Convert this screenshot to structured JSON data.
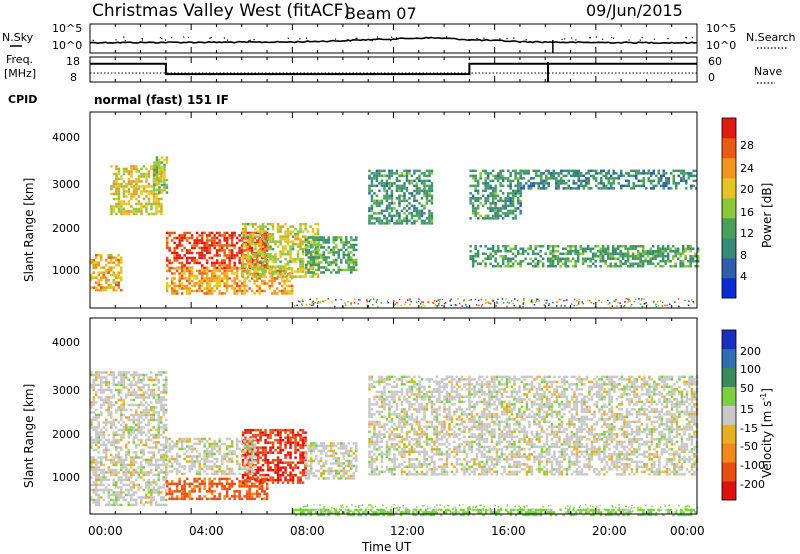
{
  "header": {
    "title": "Christmas Valley West (fitACF)",
    "beam": "Beam 07",
    "date": "09/Jun/2015"
  },
  "noise_panel": {
    "left_label_line1": "N.Sky",
    "right_label": "N.Search",
    "left_ticks": [
      "10^5",
      "10^0"
    ],
    "right_ticks": [
      "10^5",
      "10^0"
    ]
  },
  "freq_panel": {
    "left_label_line1": "Freq.",
    "left_label_line2": "[MHz]",
    "right_label": "Nave",
    "left_ticks": [
      "18",
      "8"
    ],
    "right_ticks": [
      "60",
      "0"
    ],
    "freq_segments_mhz": [
      {
        "t0": 0.0,
        "t1": 3.0,
        "f": 15.5
      },
      {
        "t0": 3.0,
        "t1": 15.0,
        "f": 11.0
      },
      {
        "t0": 15.0,
        "t1": 24.0,
        "f": 15.5
      }
    ]
  },
  "cpid": {
    "label": "CPID",
    "value": "normal (fast) 151 IF"
  },
  "x_axis": {
    "label": "Time UT",
    "ticks": [
      "00:00",
      "04:00",
      "08:00",
      "12:00",
      "16:00",
      "20:00",
      "00:00"
    ],
    "range_hours": [
      0,
      24
    ]
  },
  "y_axis": {
    "label": "Slant Range [km]",
    "ticks": [
      "1000",
      "2000",
      "3000",
      "4000"
    ],
    "range_km": [
      180,
      4600
    ]
  },
  "power_colorbar": {
    "label": "Power [dB]",
    "ticks": [
      "4",
      "8",
      "12",
      "16",
      "20",
      "24",
      "28"
    ],
    "range": [
      0,
      30
    ],
    "colors": [
      "#0a2bd6",
      "#2f5fa8",
      "#3a8a78",
      "#4aa05a",
      "#8cc63a",
      "#e8c421",
      "#f0961c",
      "#ea5a14",
      "#e01b0f"
    ]
  },
  "velocity_colorbar": {
    "label": "Velocity [m s",
    "label_sup": "-1",
    "label_close": "]",
    "ticks": [
      "200",
      "100",
      "50",
      "15",
      "-15",
      "-50",
      "-100",
      "-200"
    ],
    "colors": [
      "#1a2fc0",
      "#2f6eb0",
      "#3a8a5a",
      "#7ccf40",
      "#c8c8c8",
      "#e8b020",
      "#f08a18",
      "#ea4e14",
      "#e01010"
    ]
  },
  "chart_data": [
    {
      "type": "line",
      "title": "N.Sky / N.Search",
      "x": [
        0,
        2,
        4,
        6,
        8,
        10,
        12,
        13.5,
        15,
        17,
        19,
        21,
        24
      ],
      "series": [
        {
          "values": [
            55,
            58,
            62,
            65,
            70,
            120,
            260,
            420,
            180,
            80,
            60,
            55,
            50
          ]
        }
      ]
    },
    {
      "type": "line",
      "title": "Freq. [MHz]",
      "xlabel": "Time UT",
      "ylabel": "Freq. [MHz]",
      "x": [
        0,
        3,
        3,
        15,
        15,
        24
      ],
      "series": [
        {
          "values": [
            15.5,
            15.5,
            11.0,
            11.0,
            15.5,
            15.5
          ]
        }
      ],
      "ylim": [
        8,
        18
      ]
    },
    {
      "type": "heatmap",
      "title": "Power [dB]",
      "xlabel": "Time UT",
      "ylabel": "Slant Range [km]",
      "xlim": [
        0,
        24
      ],
      "ylim": [
        180,
        4600
      ],
      "regions": [
        {
          "t0": 0.8,
          "t1": 2.8,
          "r0": 2300,
          "r1": 3400,
          "value_db": 18
        },
        {
          "t0": 0.0,
          "t1": 1.2,
          "r0": 600,
          "r1": 1400,
          "value_db": 20
        },
        {
          "t0": 2.5,
          "t1": 3.0,
          "r0": 2800,
          "r1": 3600,
          "value_db": 15
        },
        {
          "t0": 3.0,
          "t1": 7.0,
          "r0": 1100,
          "r1": 1900,
          "value_db": 27
        },
        {
          "t0": 3.0,
          "t1": 8.0,
          "r0": 500,
          "r1": 1100,
          "value_db": 21
        },
        {
          "t0": 6.0,
          "t1": 9.0,
          "r0": 900,
          "r1": 2100,
          "value_db": 17
        },
        {
          "t0": 8.5,
          "t1": 10.5,
          "r0": 1000,
          "r1": 1800,
          "value_db": 11
        },
        {
          "t0": 11.0,
          "t1": 13.5,
          "r0": 2100,
          "r1": 3300,
          "value_db": 10
        },
        {
          "t0": 15.0,
          "t1": 17.0,
          "r0": 2200,
          "r1": 3300,
          "value_db": 10
        },
        {
          "t0": 15.0,
          "t1": 24.0,
          "r0": 1100,
          "r1": 1600,
          "value_db": 11
        },
        {
          "t0": 17.0,
          "t1": 24.0,
          "r0": 2900,
          "r1": 3300,
          "value_db": 9
        }
      ]
    },
    {
      "type": "heatmap",
      "title": "Velocity [m s-1]",
      "xlabel": "Time UT",
      "ylabel": "Slant Range [km]",
      "xlim": [
        0,
        24
      ],
      "ylim": [
        180,
        4600
      ],
      "regions": [
        {
          "t0": 0.0,
          "t1": 3.0,
          "r0": 400,
          "r1": 3400,
          "value_ms": 0
        },
        {
          "t0": 3.0,
          "t1": 7.0,
          "r0": 500,
          "r1": 1000,
          "value_ms": -110
        },
        {
          "t0": 6.0,
          "t1": 8.5,
          "r0": 900,
          "r1": 2100,
          "value_ms": -200
        },
        {
          "t0": 3.0,
          "t1": 6.5,
          "r0": 1100,
          "r1": 1900,
          "value_ms": 0
        },
        {
          "t0": 8.5,
          "t1": 10.5,
          "r0": 1000,
          "r1": 1800,
          "value_ms": 0
        },
        {
          "t0": 11.0,
          "t1": 24.0,
          "r0": 1100,
          "r1": 3300,
          "value_ms": 0
        },
        {
          "t0": 8.0,
          "t1": 24.0,
          "r0": 180,
          "r1": 300,
          "value_ms": 30
        }
      ]
    }
  ]
}
